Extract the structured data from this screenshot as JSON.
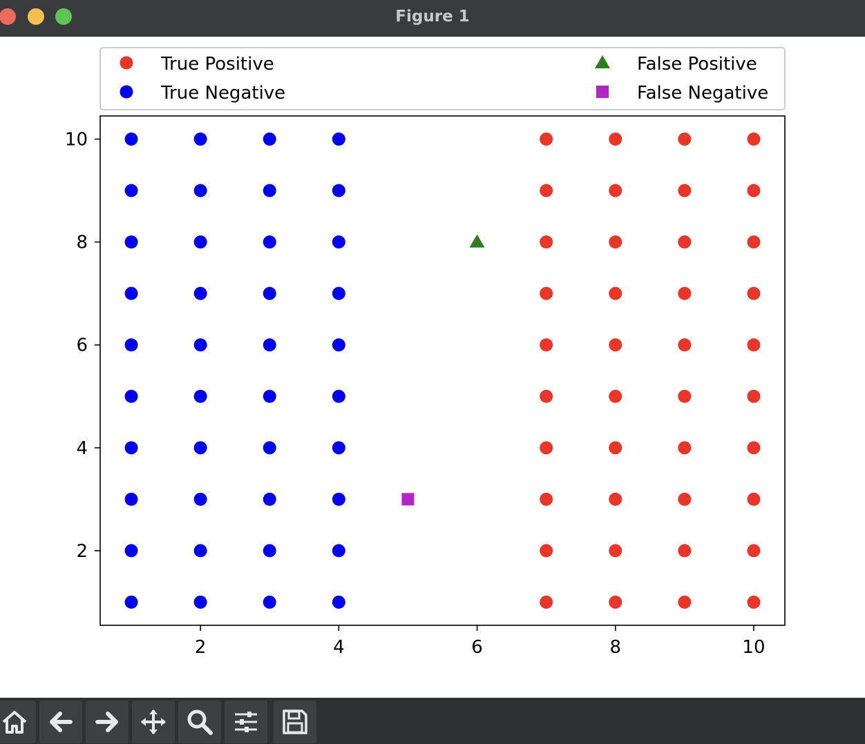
{
  "window": {
    "title": "Figure 1"
  },
  "toolbar": {
    "buttons": [
      {
        "name": "home-button",
        "icon": "home-icon"
      },
      {
        "name": "back-button",
        "icon": "arrow-left-icon"
      },
      {
        "name": "forward-button",
        "icon": "arrow-right-icon"
      },
      {
        "name": "pan-button",
        "icon": "move-icon"
      },
      {
        "name": "zoom-button",
        "icon": "magnifier-icon"
      },
      {
        "name": "configure-subplots-button",
        "icon": "sliders-icon"
      },
      {
        "name": "save-button",
        "icon": "floppy-disk-icon"
      }
    ]
  },
  "chart_data": {
    "type": "scatter",
    "title": "",
    "xlabel": "",
    "ylabel": "",
    "xlim": [
      0.55,
      10.45
    ],
    "ylim": [
      0.55,
      10.45
    ],
    "xticks": [
      2,
      4,
      6,
      8,
      10
    ],
    "yticks": [
      2,
      4,
      6,
      8,
      10
    ],
    "grid": false,
    "legend": {
      "placement": "top",
      "columns": 2
    },
    "series": [
      {
        "name": "True Positive",
        "marker": "circle",
        "color": "#e8362a",
        "x": [
          7,
          7,
          7,
          7,
          7,
          7,
          7,
          7,
          7,
          7,
          8,
          8,
          8,
          8,
          8,
          8,
          8,
          8,
          8,
          8,
          9,
          9,
          9,
          9,
          9,
          9,
          9,
          9,
          9,
          9,
          10,
          10,
          10,
          10,
          10,
          10,
          10,
          10,
          10,
          10
        ],
        "y": [
          1,
          2,
          3,
          4,
          5,
          6,
          7,
          8,
          9,
          10,
          1,
          2,
          3,
          4,
          5,
          6,
          7,
          8,
          9,
          10,
          1,
          2,
          3,
          4,
          5,
          6,
          7,
          8,
          9,
          10,
          1,
          2,
          3,
          4,
          5,
          6,
          7,
          8,
          9,
          10
        ]
      },
      {
        "name": "True Negative",
        "marker": "circle",
        "color": "#0000ee",
        "x": [
          1,
          1,
          1,
          1,
          1,
          1,
          1,
          1,
          1,
          1,
          2,
          2,
          2,
          2,
          2,
          2,
          2,
          2,
          2,
          2,
          3,
          3,
          3,
          3,
          3,
          3,
          3,
          3,
          3,
          3,
          4,
          4,
          4,
          4,
          4,
          4,
          4,
          4,
          4,
          4
        ],
        "y": [
          1,
          2,
          3,
          4,
          5,
          6,
          7,
          8,
          9,
          10,
          1,
          2,
          3,
          4,
          5,
          6,
          7,
          8,
          9,
          10,
          1,
          2,
          3,
          4,
          5,
          6,
          7,
          8,
          9,
          10,
          1,
          2,
          3,
          4,
          5,
          6,
          7,
          8,
          9,
          10
        ]
      },
      {
        "name": "False Positive",
        "marker": "triangle",
        "color": "#2e7d1f",
        "x": [
          6
        ],
        "y": [
          8
        ]
      },
      {
        "name": "False Negative",
        "marker": "square",
        "color": "#b126c4",
        "x": [
          5
        ],
        "y": [
          3
        ]
      }
    ]
  }
}
